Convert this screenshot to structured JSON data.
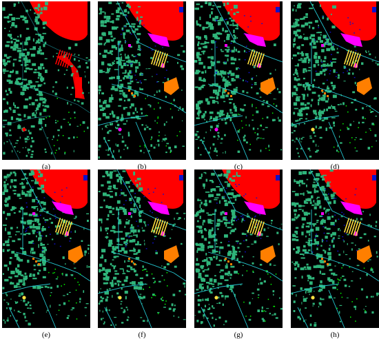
{
  "panels": [
    {
      "label": "(a)",
      "variant": "a"
    },
    {
      "label": "(b)",
      "variant": "b"
    },
    {
      "label": "(c)",
      "variant": "c"
    },
    {
      "label": "(d)",
      "variant": "d"
    },
    {
      "label": "(e)",
      "variant": "e"
    },
    {
      "label": "(f)",
      "variant": "f"
    },
    {
      "label": "(g)",
      "variant": "g"
    },
    {
      "label": "(h)",
      "variant": "h"
    }
  ],
  "colors": {
    "background": "#000000",
    "water": "#ff0000",
    "trees_buildings": "#2fb47a",
    "roads": "#24c8d2",
    "shadows": "#1010c8",
    "bitumen": "#ff00ff",
    "tiles": "#ffe040",
    "soil": "#ff7f00",
    "meadows": "#00ff00"
  }
}
